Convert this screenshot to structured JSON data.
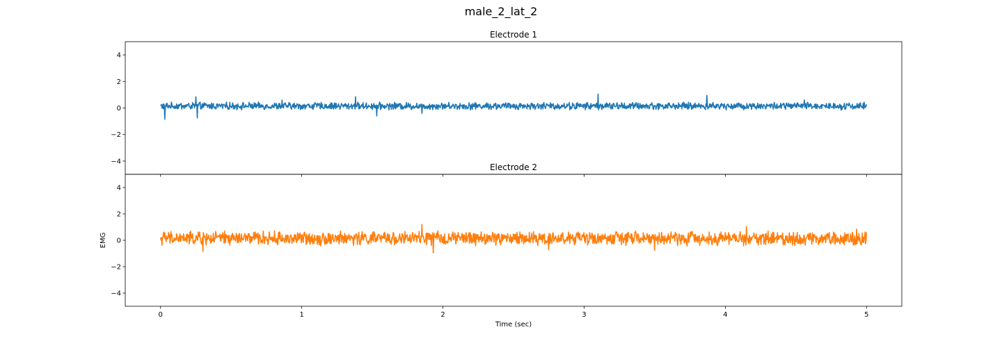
{
  "figure": {
    "suptitle": "male_2_lat_2"
  },
  "chart_data": [
    {
      "type": "line",
      "title": "Electrode 1",
      "xlabel": "",
      "ylabel": "",
      "xlim": [
        -0.25,
        5.25
      ],
      "ylim": [
        -5,
        5
      ],
      "xticks": [
        0,
        1,
        2,
        3,
        4,
        5
      ],
      "yticks": [
        -4,
        -2,
        0,
        2,
        4
      ],
      "color": "#1f77b4",
      "series": [
        {
          "x_range": [
            0,
            5
          ],
          "num_points": 1500,
          "baseline": 0.15,
          "amplitude": 0.22,
          "spikes": [
            {
              "x": 0.03,
              "y": -0.85
            },
            {
              "x": 0.25,
              "y": 0.85
            },
            {
              "x": 0.26,
              "y": -0.75
            },
            {
              "x": 1.38,
              "y": 0.85
            },
            {
              "x": 1.53,
              "y": -0.6
            },
            {
              "x": 1.85,
              "y": -0.4
            },
            {
              "x": 3.1,
              "y": 1.05
            },
            {
              "x": 3.87,
              "y": 0.95
            },
            {
              "x": 0.86,
              "y": 0.6
            },
            {
              "x": 4.56,
              "y": 0.6
            }
          ]
        }
      ]
    },
    {
      "type": "line",
      "title": "Electrode 2",
      "xlabel": "Time (sec)",
      "ylabel": "EMG",
      "xlim": [
        -0.25,
        5.25
      ],
      "ylim": [
        -5,
        5
      ],
      "xticks": [
        0,
        1,
        2,
        3,
        4,
        5
      ],
      "yticks": [
        -4,
        -2,
        0,
        2,
        4
      ],
      "color": "#ff7f0e",
      "series": [
        {
          "x_range": [
            0,
            5
          ],
          "num_points": 1500,
          "baseline": 0.15,
          "amplitude": 0.42,
          "spikes": [
            {
              "x": 0.3,
              "y": 1.3
            },
            {
              "x": 0.3,
              "y": -0.85
            },
            {
              "x": 1.85,
              "y": 1.2
            },
            {
              "x": 1.93,
              "y": -0.95
            },
            {
              "x": 4.15,
              "y": 1.05
            },
            {
              "x": 2.75,
              "y": -0.7
            },
            {
              "x": 3.5,
              "y": -0.75
            },
            {
              "x": 4.93,
              "y": 0.85
            }
          ]
        }
      ]
    }
  ]
}
